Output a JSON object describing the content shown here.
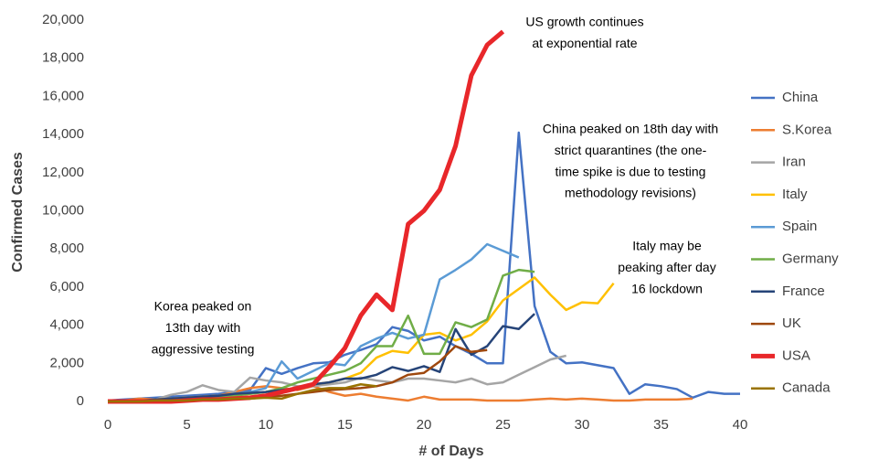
{
  "chart_data": {
    "type": "line",
    "x_label": "# of Days",
    "y_label": "Confirmed Cases",
    "x": [
      0,
      1,
      2,
      3,
      4,
      5,
      6,
      7,
      8,
      9,
      10,
      11,
      12,
      13,
      14,
      15,
      16,
      17,
      18,
      19,
      20,
      21,
      22,
      23,
      24,
      25,
      26,
      27,
      28,
      29,
      30,
      31,
      32,
      33,
      34,
      35,
      36,
      37,
      38,
      39,
      40
    ],
    "xlim": [
      0,
      40
    ],
    "xticks": [
      0,
      5,
      10,
      15,
      20,
      25,
      30,
      35,
      40
    ],
    "ylim": [
      0,
      20000
    ],
    "yticks": [
      0,
      {
        "value": 2000,
        "label": "2,000"
      },
      {
        "value": 4000,
        "label": "4,000"
      },
      {
        "value": 6000,
        "label": "6,000"
      },
      {
        "value": 8000,
        "label": "8,000"
      },
      {
        "value": 10000,
        "label": "10,000"
      },
      {
        "value": 12000,
        "label": "12,000"
      },
      {
        "value": 14000,
        "label": "14,000"
      },
      {
        "value": 16000,
        "label": "16,000"
      },
      {
        "value": 18000,
        "label": "18,000"
      },
      {
        "value": 20000,
        "label": "20,000"
      }
    ],
    "legend": "right",
    "series": [
      {
        "name": "China",
        "color": "#4472c4",
        "line_width": 2.5,
        "values": [
          50,
          100,
          150,
          200,
          250,
          300,
          350,
          400,
          500,
          600,
          1750,
          1450,
          1750,
          2000,
          2050,
          2450,
          2700,
          3000,
          3900,
          3700,
          3200,
          3400,
          2900,
          2500,
          2000,
          2000,
          14100,
          5000,
          2600,
          2000,
          2050,
          1900,
          1750,
          400,
          900,
          800,
          650,
          200,
          500,
          400,
          400
        ]
      },
      {
        "name": "S.Korea",
        "color": "#ed7d31",
        "line_width": 2.5,
        "values": [
          0,
          50,
          150,
          100,
          150,
          200,
          250,
          300,
          500,
          700,
          800,
          700,
          600,
          800,
          500,
          300,
          400,
          250,
          150,
          50,
          250,
          100,
          100,
          100,
          50,
          50,
          50,
          100,
          150,
          100,
          150,
          100,
          50,
          50,
          100,
          100,
          100,
          150,
          null,
          null,
          null
        ]
      },
      {
        "name": "Iran",
        "color": "#a5a5a5",
        "line_width": 2.5,
        "values": [
          0,
          0,
          50,
          100,
          350,
          500,
          850,
          600,
          500,
          1250,
          1100,
          1000,
          800,
          800,
          900,
          1000,
          1250,
          1100,
          1000,
          1200,
          1200,
          1100,
          1000,
          1200,
          900,
          1000,
          1400,
          1800,
          2200,
          2400,
          null,
          null,
          null,
          null,
          null,
          null,
          null,
          null,
          null,
          null,
          null
        ]
      },
      {
        "name": "Italy",
        "color": "#ffc000",
        "line_width": 2.5,
        "values": [
          0,
          20,
          50,
          100,
          150,
          200,
          250,
          300,
          350,
          400,
          500,
          600,
          700,
          900,
          1000,
          1200,
          1500,
          2300,
          2650,
          2550,
          3500,
          3600,
          3200,
          3500,
          4200,
          5300,
          5900,
          6500,
          5600,
          4800,
          5200,
          5150,
          6200,
          null,
          null,
          null,
          null,
          null,
          null,
          null,
          null
        ]
      },
      {
        "name": "Spain",
        "color": "#5b9bd5",
        "line_width": 2.5,
        "values": [
          0,
          0,
          0,
          50,
          100,
          150,
          200,
          300,
          400,
          500,
          700,
          2100,
          1200,
          1600,
          2000,
          1900,
          2900,
          3300,
          3600,
          3300,
          3500,
          6400,
          6900,
          7450,
          8250,
          7900,
          7550,
          null,
          null,
          null,
          null,
          null,
          null,
          null,
          null,
          null,
          null,
          null,
          null,
          null,
          null
        ]
      },
      {
        "name": "Germany",
        "color": "#70ad47",
        "line_width": 2.5,
        "values": [
          0,
          0,
          0,
          50,
          100,
          150,
          200,
          250,
          300,
          400,
          500,
          700,
          1000,
          1200,
          1400,
          1600,
          2000,
          2900,
          2900,
          4500,
          2500,
          2500,
          4150,
          3900,
          4300,
          6600,
          6900,
          6800,
          null,
          null,
          null,
          null,
          null,
          null,
          null,
          null,
          null,
          null,
          null,
          null,
          null
        ]
      },
      {
        "name": "France",
        "color": "#264478",
        "line_width": 2.5,
        "values": [
          0,
          0,
          50,
          100,
          150,
          200,
          250,
          300,
          400,
          450,
          500,
          600,
          700,
          900,
          1000,
          1200,
          1200,
          1400,
          1800,
          1600,
          1850,
          1550,
          3800,
          2450,
          2900,
          3950,
          3800,
          4600,
          null,
          null,
          null,
          null,
          null,
          null,
          null,
          null,
          null,
          null,
          null,
          null,
          null
        ]
      },
      {
        "name": "UK",
        "color": "#9e480e",
        "line_width": 2.5,
        "values": [
          0,
          0,
          0,
          50,
          50,
          50,
          100,
          100,
          150,
          200,
          250,
          300,
          400,
          500,
          600,
          650,
          700,
          800,
          1000,
          1400,
          1500,
          2100,
          2900,
          2600,
          2700,
          null,
          null,
          null,
          null,
          null,
          null,
          null,
          null,
          null,
          null,
          null,
          null,
          null,
          null,
          null,
          null
        ]
      },
      {
        "name": "USA",
        "color": "#e8272a",
        "line_width": 5,
        "values": [
          0,
          0,
          0,
          0,
          0,
          50,
          100,
          100,
          150,
          200,
          300,
          500,
          700,
          900,
          1800,
          2800,
          4500,
          5600,
          4800,
          9300,
          10000,
          11100,
          13400,
          17100,
          18700,
          19400,
          null,
          null,
          null,
          null,
          null,
          null,
          null,
          null,
          null,
          null,
          null,
          null,
          null,
          null,
          null
        ]
      },
      {
        "name": "Canada",
        "color": "#997300",
        "line_width": 2.5,
        "values": [
          0,
          0,
          0,
          50,
          50,
          50,
          100,
          100,
          150,
          150,
          200,
          150,
          400,
          600,
          700,
          700,
          900,
          800,
          null,
          null,
          null,
          null,
          null,
          null,
          null,
          null,
          null,
          null,
          null,
          null,
          null,
          null,
          null,
          null,
          null,
          null,
          null,
          null,
          null,
          null,
          null
        ]
      }
    ],
    "annotations": [
      {
        "lines": [
          "US growth continues",
          "at exponential rate"
        ]
      },
      {
        "lines": [
          "China peaked on 18th day with",
          "strict quarantines (the one-",
          "time spike is due to testing",
          "methodology revisions)"
        ]
      },
      {
        "lines": [
          "Italy may be",
          "peaking after day",
          "16 lockdown"
        ]
      },
      {
        "lines": [
          "Korea peaked on",
          "13th day with",
          "aggressive testing"
        ]
      }
    ]
  }
}
